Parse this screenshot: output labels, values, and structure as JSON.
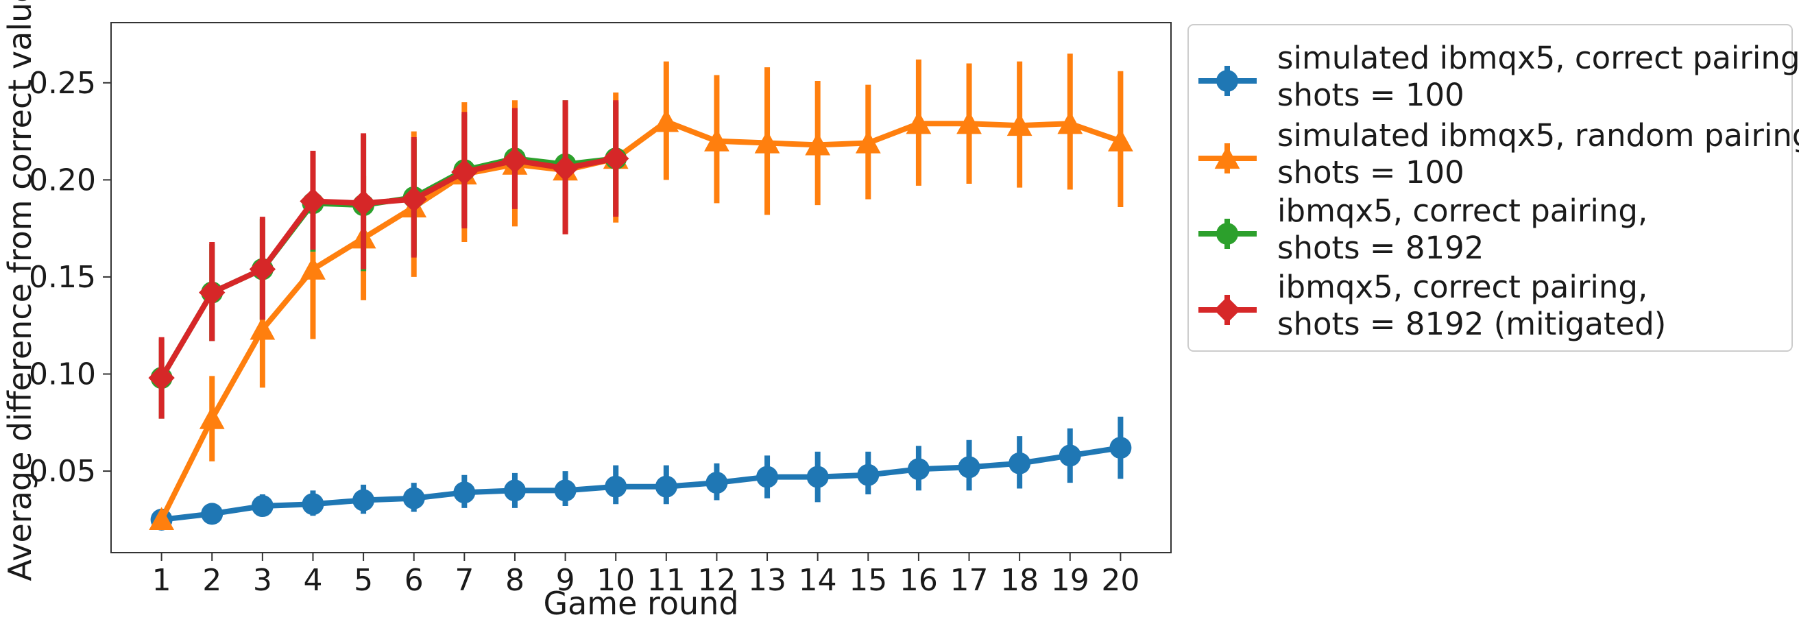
{
  "chart_data": {
    "type": "line",
    "title": "",
    "xlabel": "Game round",
    "ylabel": "Average difference from correct values",
    "xlim": [
      0,
      21
    ],
    "ylim": [
      0.008,
      0.281
    ],
    "x_ticks": [
      1,
      2,
      3,
      4,
      5,
      6,
      7,
      8,
      9,
      10,
      11,
      12,
      13,
      14,
      15,
      16,
      17,
      18,
      19,
      20
    ],
    "y_ticks": [
      0.05,
      0.1,
      0.15,
      0.2,
      0.25
    ],
    "y_tick_labels": [
      "0.05",
      "0.10",
      "0.15",
      "0.20",
      "0.25"
    ],
    "grid": false,
    "legend_position": "outside-right-top",
    "series": [
      {
        "name": "simulated ibmqx5, correct pairing,\nshots = 100",
        "color": "#1f77b4",
        "marker": "circle",
        "x": [
          1,
          2,
          3,
          4,
          5,
          6,
          7,
          8,
          9,
          10,
          11,
          12,
          13,
          14,
          15,
          16,
          17,
          18,
          19,
          20
        ],
        "values": [
          0.025,
          0.028,
          0.032,
          0.033,
          0.035,
          0.036,
          0.039,
          0.04,
          0.04,
          0.042,
          0.042,
          0.044,
          0.047,
          0.047,
          0.048,
          0.051,
          0.052,
          0.054,
          0.058,
          0.062
        ],
        "err_low": [
          0.023,
          0.023,
          0.027,
          0.027,
          0.028,
          0.029,
          0.031,
          0.031,
          0.032,
          0.033,
          0.033,
          0.035,
          0.036,
          0.034,
          0.038,
          0.04,
          0.04,
          0.041,
          0.044,
          0.046
        ],
        "err_high": [
          0.027,
          0.033,
          0.038,
          0.04,
          0.043,
          0.044,
          0.048,
          0.049,
          0.05,
          0.053,
          0.053,
          0.054,
          0.058,
          0.06,
          0.06,
          0.063,
          0.066,
          0.068,
          0.072,
          0.078
        ]
      },
      {
        "name": "simulated ibmqx5, random pairing,\nshots = 100",
        "color": "#ff7f0e",
        "marker": "triangle",
        "x": [
          1,
          2,
          3,
          4,
          5,
          6,
          7,
          8,
          9,
          10,
          11,
          12,
          13,
          14,
          15,
          16,
          17,
          18,
          19,
          20
        ],
        "values": [
          0.025,
          0.077,
          0.123,
          0.154,
          0.17,
          0.186,
          0.203,
          0.208,
          0.205,
          0.211,
          0.23,
          0.22,
          0.219,
          0.218,
          0.219,
          0.229,
          0.229,
          0.228,
          0.229,
          0.22
        ],
        "err_low": [
          0.025,
          0.055,
          0.093,
          0.118,
          0.138,
          0.15,
          0.168,
          0.176,
          0.172,
          0.178,
          0.2,
          0.188,
          0.182,
          0.187,
          0.19,
          0.197,
          0.198,
          0.196,
          0.195,
          0.186
        ],
        "err_high": [
          0.025,
          0.099,
          0.153,
          0.163,
          0.202,
          0.225,
          0.24,
          0.241,
          0.238,
          0.245,
          0.261,
          0.254,
          0.258,
          0.251,
          0.249,
          0.262,
          0.26,
          0.261,
          0.265,
          0.256
        ]
      },
      {
        "name": "ibmqx5, correct pairing,\nshots = 8192",
        "color": "#2ca02c",
        "marker": "circle",
        "x": [
          1,
          2,
          3,
          4,
          5,
          6,
          7,
          8,
          9,
          10
        ],
        "values": [
          0.098,
          0.142,
          0.154,
          0.188,
          0.187,
          0.191,
          0.205,
          0.211,
          0.208,
          0.211
        ],
        "err_low": [
          0.077,
          0.117,
          0.128,
          0.163,
          0.153,
          0.161,
          0.176,
          0.186,
          0.173,
          0.182
        ],
        "err_high": [
          0.118,
          0.167,
          0.18,
          0.214,
          0.223,
          0.221,
          0.234,
          0.236,
          0.241,
          0.24
        ]
      },
      {
        "name": "ibmqx5, correct pairing,\nshots = 8192 (mitigated)",
        "color": "#d62728",
        "marker": "diamond",
        "x": [
          1,
          2,
          3,
          4,
          5,
          6,
          7,
          8,
          9,
          10
        ],
        "values": [
          0.098,
          0.142,
          0.154,
          0.189,
          0.188,
          0.19,
          0.204,
          0.21,
          0.206,
          0.211
        ],
        "err_low": [
          0.077,
          0.117,
          0.128,
          0.164,
          0.154,
          0.16,
          0.175,
          0.185,
          0.172,
          0.181
        ],
        "err_high": [
          0.119,
          0.168,
          0.181,
          0.215,
          0.224,
          0.222,
          0.235,
          0.237,
          0.241,
          0.241
        ]
      }
    ]
  }
}
